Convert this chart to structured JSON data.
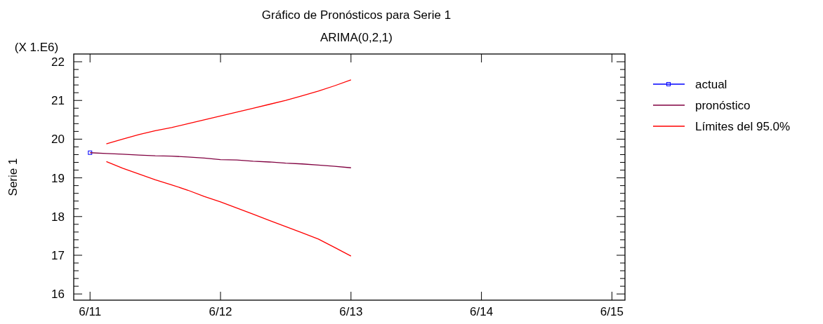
{
  "chart_data": {
    "type": "line",
    "title": "Gráfico de Pronósticos para Serie 1",
    "subtitle": "ARIMA(0,2,1)",
    "ylabel": "Serie 1",
    "annotations": [
      "(X 1.E6)"
    ],
    "categories": [
      "6/11",
      null,
      null,
      null,
      null,
      null,
      null,
      null,
      "6/12",
      null,
      null,
      null,
      null,
      null,
      null,
      null,
      "6/13",
      null,
      null,
      null,
      null,
      null,
      null,
      null,
      "6/14",
      null,
      null,
      null,
      null,
      null,
      null,
      null,
      "6/15"
    ],
    "ylim": [
      15.84,
      22.2
    ],
    "yticks": [
      16,
      17,
      18,
      19,
      20,
      21,
      22
    ],
    "grid": false,
    "legend": "right",
    "series": [
      {
        "name": "actual",
        "color": "#0000ff",
        "marker": "square",
        "values": [
          19.65,
          null,
          null,
          null,
          null,
          null,
          null,
          null,
          null,
          null,
          null,
          null,
          null,
          null,
          null,
          null,
          null,
          null,
          null,
          null,
          null,
          null,
          null,
          null,
          null,
          null,
          null,
          null,
          null,
          null,
          null,
          null,
          null
        ]
      },
      {
        "name": "pronóstico",
        "color": "#800040",
        "marker": "none",
        "values": [
          19.65,
          19.63,
          19.61,
          19.59,
          19.57,
          19.56,
          19.54,
          19.51,
          19.47,
          19.46,
          19.43,
          19.41,
          19.38,
          19.36,
          19.33,
          19.3,
          19.26,
          null,
          null,
          null,
          null,
          null,
          null,
          null,
          null,
          null,
          null,
          null,
          null,
          null,
          null,
          null,
          null
        ]
      },
      {
        "name": "Límites del 95.0%",
        "color": "#ff0000",
        "marker": "none",
        "values": [
          null,
          19.88,
          20.0,
          20.12,
          20.22,
          20.3,
          20.4,
          20.5,
          20.6,
          20.7,
          20.8,
          20.9,
          21.0,
          21.12,
          21.24,
          21.38,
          21.53,
          null,
          null,
          null,
          null,
          null,
          null,
          null,
          null,
          null,
          null,
          null,
          null,
          null,
          null,
          null,
          null
        ]
      },
      {
        "color": "#ff0000",
        "marker": "none",
        "values": [
          null,
          19.42,
          19.25,
          19.1,
          18.95,
          18.82,
          18.68,
          18.52,
          18.38,
          18.22,
          18.06,
          17.9,
          17.74,
          17.58,
          17.42,
          17.2,
          16.98,
          null,
          null,
          null,
          null,
          null,
          null,
          null,
          null,
          null,
          null,
          null,
          null,
          null,
          null,
          null,
          null
        ]
      }
    ]
  }
}
